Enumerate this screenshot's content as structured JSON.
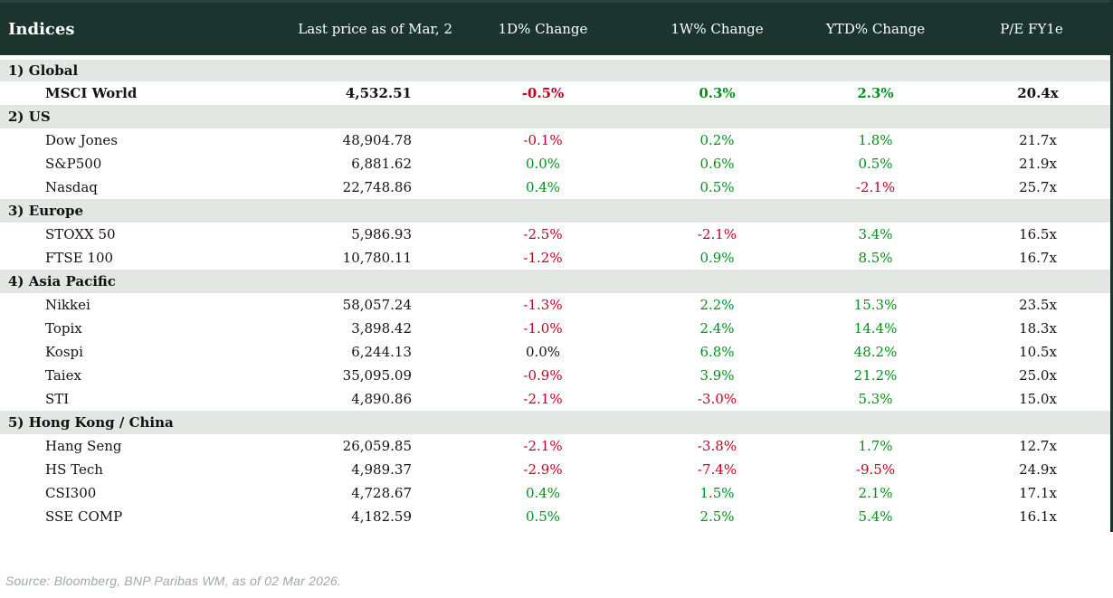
{
  "chart_data": {
    "type": "table",
    "title": "Indices",
    "columns": [
      "Indices",
      "Last price as of Mar, 2",
      "1D% Change",
      "1W% Change",
      "YTD% Change",
      "P/E FY1e"
    ],
    "sections": [
      {
        "label": "1) Global",
        "rows": [
          {
            "name": "MSCI World",
            "emphasis": true,
            "price": "4,532.51",
            "changes": [
              {
                "value": "-0.5%",
                "tone": "negative"
              },
              {
                "value": "0.3%",
                "tone": "positive"
              },
              {
                "value": "2.3%",
                "tone": "positive"
              }
            ],
            "pe": "20.4x"
          }
        ]
      },
      {
        "label": "2) US",
        "rows": [
          {
            "name": "Dow Jones",
            "emphasis": false,
            "price": "48,904.78",
            "changes": [
              {
                "value": "-0.1%",
                "tone": "negative"
              },
              {
                "value": "0.2%",
                "tone": "positive"
              },
              {
                "value": "1.8%",
                "tone": "positive"
              }
            ],
            "pe": "21.7x"
          },
          {
            "name": "S&P500",
            "emphasis": false,
            "price": "6,881.62",
            "changes": [
              {
                "value": "0.0%",
                "tone": "positive"
              },
              {
                "value": "0.6%",
                "tone": "positive"
              },
              {
                "value": "0.5%",
                "tone": "positive"
              }
            ],
            "pe": "21.9x"
          },
          {
            "name": "Nasdaq",
            "emphasis": false,
            "price": "22,748.86",
            "changes": [
              {
                "value": "0.4%",
                "tone": "positive"
              },
              {
                "value": "0.5%",
                "tone": "positive"
              },
              {
                "value": "-2.1%",
                "tone": "negative"
              }
            ],
            "pe": "25.7x"
          }
        ]
      },
      {
        "label": "3) Europe",
        "rows": [
          {
            "name": "STOXX 50",
            "emphasis": false,
            "price": "5,986.93",
            "changes": [
              {
                "value": "-2.5%",
                "tone": "negative"
              },
              {
                "value": "-2.1%",
                "tone": "negative"
              },
              {
                "value": "3.4%",
                "tone": "positive"
              }
            ],
            "pe": "16.5x"
          },
          {
            "name": "FTSE 100",
            "emphasis": false,
            "price": "10,780.11",
            "changes": [
              {
                "value": "-1.2%",
                "tone": "negative"
              },
              {
                "value": "0.9%",
                "tone": "positive"
              },
              {
                "value": "8.5%",
                "tone": "positive"
              }
            ],
            "pe": "16.7x"
          }
        ]
      },
      {
        "label": "4) Asia Pacific",
        "rows": [
          {
            "name": "Nikkei",
            "emphasis": false,
            "price": "58,057.24",
            "changes": [
              {
                "value": "-1.3%",
                "tone": "negative"
              },
              {
                "value": "2.2%",
                "tone": "positive"
              },
              {
                "value": "15.3%",
                "tone": "positive"
              }
            ],
            "pe": "23.5x"
          },
          {
            "name": "Topix",
            "emphasis": false,
            "price": "3,898.42",
            "changes": [
              {
                "value": "-1.0%",
                "tone": "negative"
              },
              {
                "value": "2.4%",
                "tone": "positive"
              },
              {
                "value": "14.4%",
                "tone": "positive"
              }
            ],
            "pe": "18.3x"
          },
          {
            "name": "Kospi",
            "emphasis": false,
            "price": "6,244.13",
            "changes": [
              {
                "value": "0.0%",
                "tone": "neutral"
              },
              {
                "value": "6.8%",
                "tone": "positive"
              },
              {
                "value": "48.2%",
                "tone": "positive"
              }
            ],
            "pe": "10.5x"
          },
          {
            "name": "Taiex",
            "emphasis": false,
            "price": "35,095.09",
            "changes": [
              {
                "value": "-0.9%",
                "tone": "negative"
              },
              {
                "value": "3.9%",
                "tone": "positive"
              },
              {
                "value": "21.2%",
                "tone": "positive"
              }
            ],
            "pe": "25.0x"
          },
          {
            "name": "STI",
            "emphasis": false,
            "price": "4,890.86",
            "changes": [
              {
                "value": "-2.1%",
                "tone": "negative"
              },
              {
                "value": "-3.0%",
                "tone": "negative"
              },
              {
                "value": "5.3%",
                "tone": "positive"
              }
            ],
            "pe": "15.0x"
          }
        ]
      },
      {
        "label": "5) Hong Kong / China",
        "rows": [
          {
            "name": "Hang Seng",
            "emphasis": false,
            "price": "26,059.85",
            "changes": [
              {
                "value": "-2.1%",
                "tone": "negative"
              },
              {
                "value": "-3.8%",
                "tone": "negative"
              },
              {
                "value": "1.7%",
                "tone": "positive"
              }
            ],
            "pe": "12.7x"
          },
          {
            "name": "HS Tech",
            "emphasis": false,
            "price": "4,989.37",
            "changes": [
              {
                "value": "-2.9%",
                "tone": "negative"
              },
              {
                "value": "-7.4%",
                "tone": "negative"
              },
              {
                "value": "-9.5%",
                "tone": "negative"
              }
            ],
            "pe": "24.9x"
          },
          {
            "name": "CSI300",
            "emphasis": false,
            "price": "4,728.67",
            "changes": [
              {
                "value": "0.4%",
                "tone": "positive"
              },
              {
                "value": "1.5%",
                "tone": "positive"
              },
              {
                "value": "2.1%",
                "tone": "positive"
              }
            ],
            "pe": "17.1x"
          },
          {
            "name": "SSE COMP",
            "emphasis": false,
            "price": "4,182.59",
            "changes": [
              {
                "value": "0.5%",
                "tone": "positive"
              },
              {
                "value": "2.5%",
                "tone": "positive"
              },
              {
                "value": "5.4%",
                "tone": "positive"
              }
            ],
            "pe": "16.1x"
          }
        ]
      }
    ]
  },
  "source_note": "Source: Bloomberg, BNP Paribas WM, as of 02 Mar 2026.",
  "colors": {
    "header_bg": "#1b352e",
    "section_bg": "#e2e7e3",
    "negative": "#c00021",
    "positive": "#00911c",
    "neutral": "#131313"
  }
}
